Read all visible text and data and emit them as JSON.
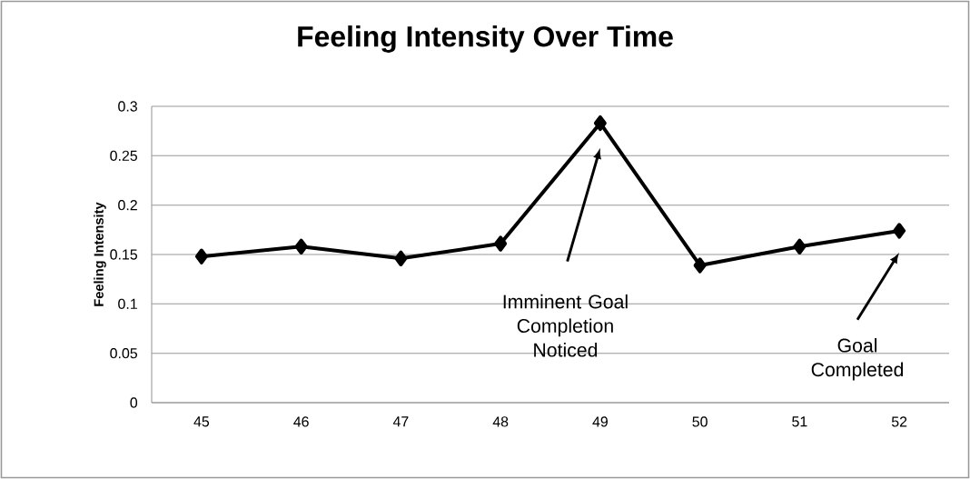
{
  "chart_data": {
    "type": "line",
    "title": "Feeling Intensity Over Time",
    "ylabel": "Feeling Intensity",
    "categories": [
      "45",
      "46",
      "47",
      "48",
      "49",
      "50",
      "51",
      "52"
    ],
    "values": [
      0.148,
      0.158,
      0.146,
      0.161,
      0.283,
      0.139,
      0.158,
      0.174
    ],
    "color": "#000000",
    "marker": "diamond",
    "line_style": "solid",
    "grid": "y",
    "ylim": [
      0,
      0.3
    ],
    "yticks": [
      0,
      0.05,
      0.1,
      0.15,
      0.2,
      0.25,
      0.3
    ],
    "annotations": [
      "Imminent Goal Completion Noticed",
      "Goal Completed"
    ]
  }
}
